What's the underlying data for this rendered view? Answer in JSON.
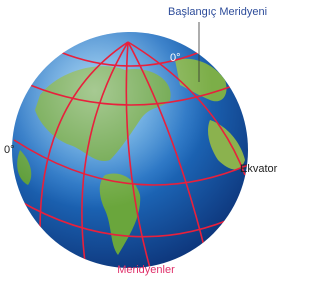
{
  "labels": {
    "prime_meridian": "Başlangıç Meridyeni",
    "zero_top": "0°",
    "zero_left": "0°",
    "equator": "Ekvator",
    "meridians": "Meridyenler"
  }
}
